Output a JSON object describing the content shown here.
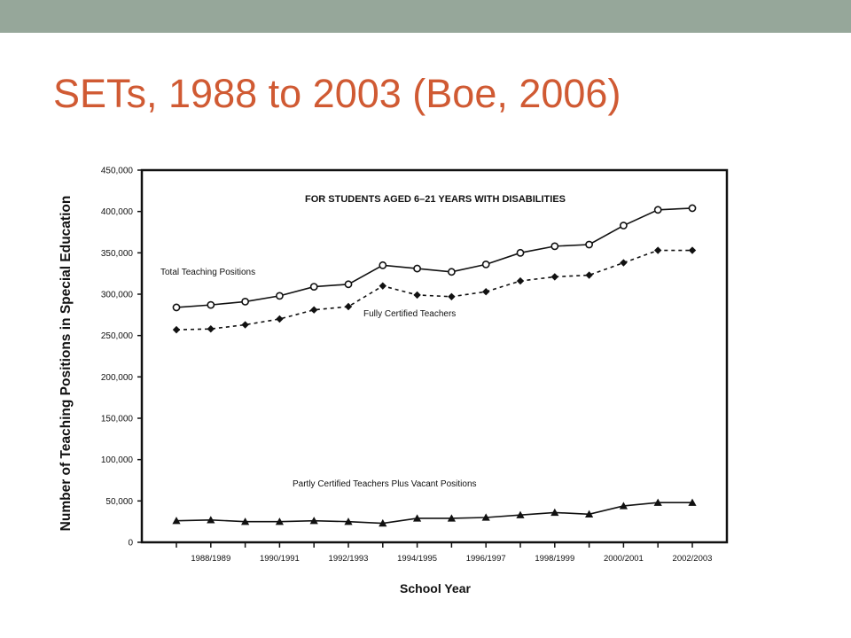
{
  "slide": {
    "title": "SETs, 1988 to 2003 (Boe, 2006)"
  },
  "colors": {
    "top_bar": "#96a79a",
    "title": "#d05a33",
    "chart_ink": "#111111"
  },
  "chart_data": {
    "type": "line",
    "title": "FOR STUDENTS AGED 6–21 YEARS WITH DISABILITIES",
    "xlabel": "School Year",
    "ylabel": "Number of Teaching Positions in Special Education",
    "ylim": [
      0,
      450000
    ],
    "yticks": [
      0,
      50000,
      100000,
      150000,
      200000,
      250000,
      300000,
      350000,
      400000,
      450000
    ],
    "ytick_labels": [
      "0",
      "50,000",
      "100,000",
      "150,000",
      "200,000",
      "250,000",
      "300,000",
      "350,000",
      "400,000",
      "450,000"
    ],
    "x": [
      "1987/1988",
      "1988/1989",
      "1989/1990",
      "1990/1991",
      "1991/1992",
      "1992/1993",
      "1993/1994",
      "1994/1995",
      "1995/1996",
      "1996/1997",
      "1997/1998",
      "1998/1999",
      "1999/2000",
      "2000/2001",
      "2001/2002",
      "2002/2003"
    ],
    "xtick_labels": [
      "1988/1989",
      "1990/1991",
      "1992/1993",
      "1994/1995",
      "1996/1997",
      "1998/1999",
      "2000/2001",
      "2002/2003"
    ],
    "series": [
      {
        "name": "Total Teaching Positions",
        "marker": "open-circle",
        "line": "solid",
        "values": [
          284000,
          287000,
          291000,
          298000,
          309000,
          312000,
          335000,
          331000,
          327000,
          336000,
          350000,
          358000,
          360000,
          383000,
          402000,
          404000
        ]
      },
      {
        "name": "Fully Certified Teachers",
        "marker": "diamond",
        "line": "dashed",
        "values": [
          257000,
          258000,
          263000,
          270000,
          281000,
          285000,
          310000,
          299000,
          297000,
          303000,
          316000,
          321000,
          323000,
          338000,
          353000,
          353000
        ]
      },
      {
        "name": "Partly Certified Teachers Plus Vacant Positions",
        "marker": "triangle",
        "line": "solid",
        "values": [
          26000,
          27000,
          25000,
          25000,
          26000,
          25000,
          23000,
          29000,
          29000,
          30000,
          33000,
          36000,
          34000,
          44000,
          48000,
          48000
        ]
      }
    ],
    "grid": false,
    "legend": "inline labels"
  }
}
